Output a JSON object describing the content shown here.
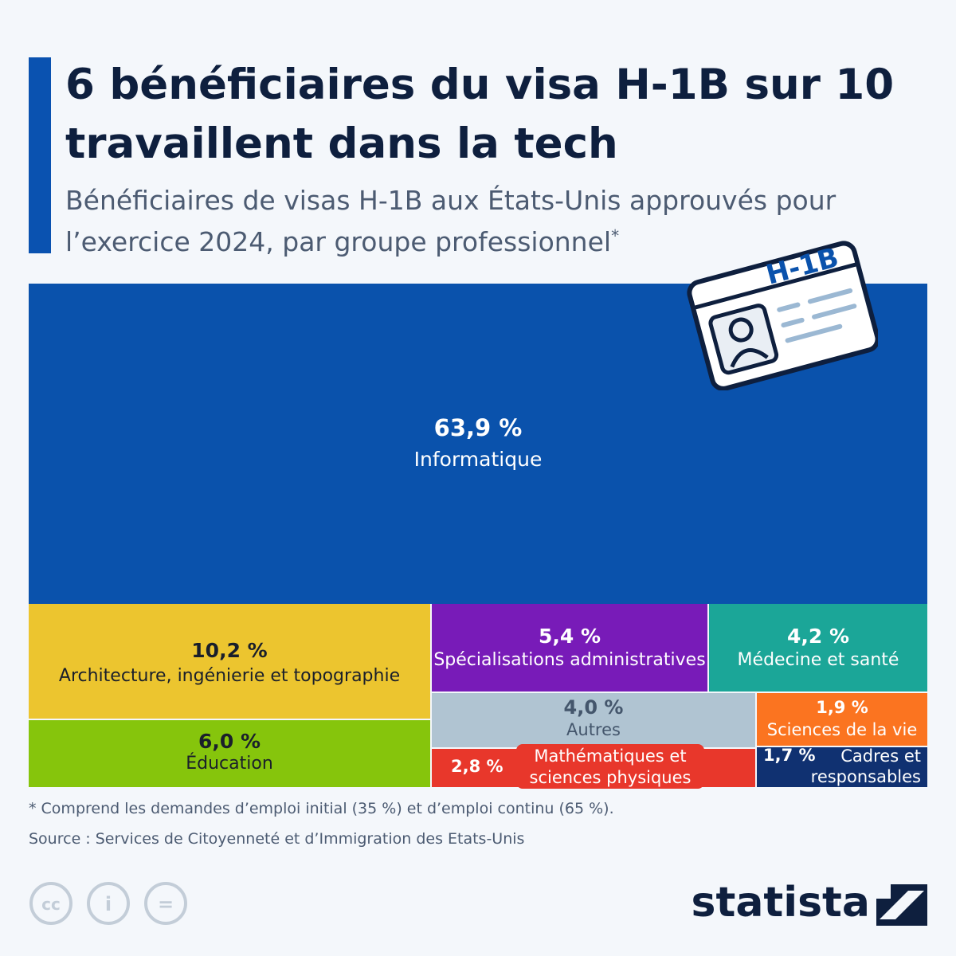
{
  "title": "6 bénéficiaires du visa H-1B sur 10 travaillent dans la tech",
  "subtitle": "Bénéficiaires de visas H-1B aux États-Unis approuvés pour l’exercice 2024, par groupe professionnel",
  "subtitle_mark": "*",
  "card_label": "H-1B",
  "chart_data": {
    "type": "treemap",
    "unit": "%",
    "categories": [
      "Informatique",
      "Architecture, ingénierie et topographie",
      "Éducation",
      "Spécialisations administratives",
      "Médecine et santé",
      "Autres",
      "Mathématiques et sciences physiques",
      "Sciences de la vie",
      "Cadres et responsables"
    ],
    "values": [
      63.9,
      10.2,
      6.0,
      5.4,
      4.2,
      4.0,
      2.8,
      1.9,
      1.7
    ],
    "value_labels": [
      "63,9 %",
      "10,2 %",
      "6,0 %",
      "5,4 %",
      "4,2 %",
      "4,0 %",
      "2,8 %",
      "1,9 %",
      "1,7 %"
    ],
    "colors": [
      "#0a52ac",
      "#ecc52f",
      "#86c50c",
      "#781bb8",
      "#1ba698",
      "#b0c4d2",
      "#e8372b",
      "#fb7420",
      "#103171"
    ]
  },
  "footnote": "* Comprend les demandes d’emploi initial (35 %) et d’emploi continu (65 %).",
  "source": "Source : Services de Citoyenneté et d’Immigration des Etats-Unis",
  "license": [
    "cc",
    "i",
    "="
  ],
  "brand": "statista"
}
